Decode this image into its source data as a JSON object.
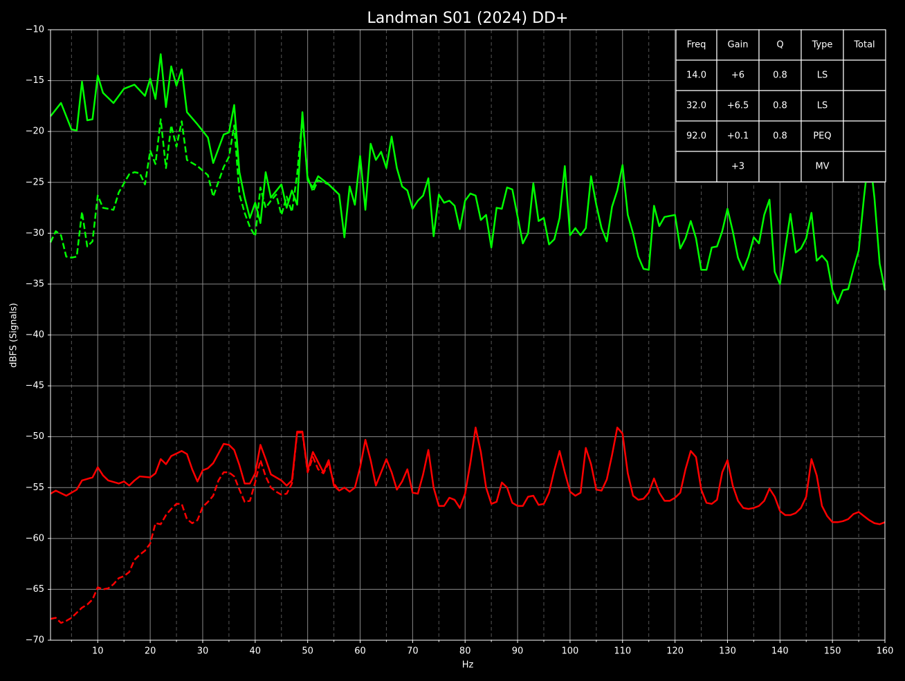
{
  "chart_data": {
    "type": "line",
    "title": "Landman S01 (2024) DD+",
    "xlabel": "Hz",
    "ylabel": "dBFS (Signals)",
    "xlim": [
      1,
      160
    ],
    "ylim": [
      -70,
      -10
    ],
    "xticks": [
      10,
      20,
      30,
      40,
      50,
      60,
      70,
      80,
      90,
      100,
      110,
      120,
      130,
      140,
      150,
      160
    ],
    "xminorticks": [
      5,
      15,
      25,
      35,
      45,
      55,
      65,
      75,
      85,
      95,
      105,
      115,
      125,
      135,
      145,
      155
    ],
    "yticks": [
      {
        "value": -10,
        "label": "−10"
      },
      {
        "value": -15,
        "label": "−15"
      },
      {
        "value": -20,
        "label": "−20"
      },
      {
        "value": -25,
        "label": "−25"
      },
      {
        "value": -30,
        "label": "−30"
      },
      {
        "value": -35,
        "label": "−35"
      },
      {
        "value": -40,
        "label": "−40"
      },
      {
        "value": -45,
        "label": "−45"
      },
      {
        "value": -50,
        "label": "−50"
      },
      {
        "value": -55,
        "label": "−55"
      },
      {
        "value": -60,
        "label": "−60"
      },
      {
        "value": -65,
        "label": "−65"
      },
      {
        "value": -70,
        "label": "−70"
      }
    ],
    "grid": true,
    "series": [
      {
        "color": "#00ff00",
        "dashed": false,
        "x": [
          1,
          3,
          5,
          6,
          7,
          8,
          9,
          10,
          11,
          13,
          15,
          17,
          19,
          20,
          21,
          22,
          23,
          24,
          25,
          26,
          27,
          29,
          31,
          32,
          34,
          35,
          36,
          37,
          38,
          39,
          40,
          41,
          42,
          43,
          45,
          46,
          47,
          48,
          49,
          50,
          51,
          52,
          54,
          56,
          57,
          58,
          59,
          60,
          61,
          62,
          63,
          64,
          65,
          66,
          67,
          68,
          69,
          70,
          71,
          72,
          73,
          74,
          75,
          76,
          77,
          78,
          79,
          80,
          81,
          82,
          83,
          84,
          85,
          86,
          87,
          88,
          89,
          91,
          92,
          93,
          94,
          95,
          96,
          97,
          98,
          99,
          100,
          101,
          102,
          103,
          104,
          105,
          106,
          107,
          108,
          109,
          110,
          111,
          112,
          113,
          114,
          115,
          116,
          117,
          118,
          119,
          120,
          121,
          122,
          123,
          124,
          125,
          126,
          127,
          128,
          129,
          130,
          131,
          132,
          133,
          134,
          135,
          136,
          137,
          138,
          139,
          140,
          141,
          142,
          143,
          144,
          145,
          146,
          147,
          148,
          149,
          150,
          151,
          152,
          153,
          154,
          155,
          156,
          157,
          158,
          159,
          160
        ],
        "values": [
          -18.5,
          -17.2,
          -19.8,
          -19.9,
          -15.1,
          -18.9,
          -18.8,
          -14.5,
          -16.2,
          -17.2,
          -15.8,
          -15.4,
          -16.5,
          -14.8,
          -16.8,
          -12.4,
          -17.6,
          -13.6,
          -15.5,
          -13.9,
          -18.1,
          -19.3,
          -20.6,
          -23.1,
          -20.3,
          -20.1,
          -17.4,
          -24,
          -26.5,
          -28.5,
          -27,
          -29,
          -24,
          -26.5,
          -25.2,
          -27.5,
          -25.8,
          -27.2,
          -18.1,
          -24.8,
          -25.5,
          -24.4,
          -25.2,
          -26.2,
          -30.4,
          -25.4,
          -27.2,
          -22.4,
          -27.7,
          -21.2,
          -22.8,
          -22,
          -23.6,
          -20.5,
          -23.6,
          -25.4,
          -25.8,
          -27.6,
          -26.8,
          -26.3,
          -24.6,
          -30.3,
          -26.2,
          -27,
          -26.8,
          -27.3,
          -29.6,
          -26.8,
          -26.1,
          -26.3,
          -28.7,
          -28.2,
          -31.4,
          -27.5,
          -27.6,
          -25.5,
          -25.7,
          -31,
          -30,
          -25.1,
          -28.8,
          -28.5,
          -31.1,
          -30.6,
          -28.5,
          -23.4,
          -30.2,
          -29.5,
          -30.2,
          -29.5,
          -24.4,
          -27.2,
          -29.5,
          -30.8,
          -27.4,
          -25.8,
          -23.3,
          -28.2,
          -30,
          -32.3,
          -33.5,
          -33.6,
          -27.3,
          -29.3,
          -28.4,
          -28.3,
          -28.2,
          -31.5,
          -30.5,
          -28.8,
          -30.5,
          -33.6,
          -33.6,
          -31.4,
          -31.3,
          -29.8,
          -27.6,
          -29.8,
          -32.4,
          -33.6,
          -32.3,
          -30.4,
          -31,
          -28.2,
          -26.7,
          -33.8,
          -35,
          -31.5,
          -28.1,
          -31.9,
          -31.5,
          -30.5,
          -28,
          -32.7,
          -32.2,
          -32.8,
          -35.6,
          -36.9,
          -35.6,
          -35.5,
          -33.5,
          -31.7,
          -26.5,
          -22,
          -26.5,
          -33,
          -35.6
        ]
      },
      {
        "color": "#00ff00",
        "dashed": true,
        "x": [
          1,
          2,
          3,
          4,
          5,
          6,
          7,
          8,
          9,
          10,
          11,
          12,
          13,
          14,
          15,
          16,
          17,
          18,
          19,
          20,
          21,
          22,
          23,
          24,
          25,
          26,
          27,
          29,
          31,
          32,
          34,
          35,
          36,
          37,
          38,
          39,
          40,
          41,
          42,
          43,
          44,
          45,
          46,
          47,
          48,
          49,
          50,
          51,
          52,
          54,
          56
        ],
        "values": [
          -30.9,
          -29.8,
          -30.2,
          -32.3,
          -32.4,
          -32.3,
          -27.9,
          -31.3,
          -30.8,
          -26.3,
          -27.5,
          -27.6,
          -27.7,
          -26,
          -25.1,
          -24.2,
          -24,
          -24.1,
          -25.2,
          -21.9,
          -23.2,
          -18.8,
          -23.6,
          -19.4,
          -21.5,
          -19,
          -22.8,
          -23.4,
          -24.3,
          -26.4,
          -23.5,
          -22.5,
          -19.4,
          -26.2,
          -28,
          -29.4,
          -30.3,
          -25.5,
          -27.5,
          -26.8,
          -26.2,
          -28.2,
          -26.4,
          -27.9,
          -24.2,
          -18.6,
          -24.5,
          -25.9,
          -24.8,
          -25.2,
          -26.2
        ]
      },
      {
        "color": "#ff0000",
        "dashed": false,
        "x": [
          1,
          2,
          4,
          6,
          7,
          9,
          10,
          11,
          12,
          14,
          15,
          16,
          17,
          18,
          20,
          21,
          22,
          23,
          24,
          26,
          27,
          28,
          29,
          30,
          31,
          32,
          34,
          35,
          36,
          37,
          38,
          39,
          40,
          41,
          42,
          43,
          45,
          46,
          47,
          48,
          49,
          50,
          51,
          52,
          53,
          54,
          55,
          56,
          57,
          58,
          59,
          60,
          61,
          62,
          63,
          64,
          65,
          66,
          67,
          68,
          69,
          70,
          71,
          72,
          73,
          74,
          75,
          76,
          77,
          78,
          79,
          80,
          81,
          82,
          83,
          84,
          85,
          86,
          87,
          88,
          89,
          90,
          91,
          92,
          93,
          94,
          95,
          96,
          97,
          98,
          99,
          100,
          101,
          102,
          103,
          104,
          105,
          106,
          107,
          108,
          109,
          110,
          111,
          112,
          113,
          114,
          115,
          116,
          117,
          118,
          119,
          120,
          121,
          122,
          123,
          124,
          125,
          126,
          127,
          128,
          129,
          130,
          131,
          132,
          133,
          134,
          135,
          136,
          137,
          138,
          139,
          140,
          141,
          142,
          143,
          144,
          145,
          146,
          147,
          148,
          149,
          150,
          151,
          152,
          153,
          154,
          155,
          156,
          157,
          158,
          159,
          160
        ],
        "values": [
          -55.6,
          -55.3,
          -55.8,
          -55.2,
          -54.3,
          -54,
          -53,
          -53.8,
          -54.3,
          -54.6,
          -54.4,
          -54.8,
          -54.3,
          -53.9,
          -54,
          -53.6,
          -52.2,
          -52.7,
          -51.9,
          -51.4,
          -51.7,
          -53.2,
          -54.4,
          -53.3,
          -53.1,
          -52.6,
          -50.7,
          -50.8,
          -51.3,
          -52.8,
          -54.6,
          -54.6,
          -53.6,
          -50.8,
          -52.2,
          -53.7,
          -54.3,
          -54.8,
          -54.3,
          -49.5,
          -49.5,
          -53.3,
          -51.5,
          -52.5,
          -53.5,
          -52.3,
          -54.8,
          -55.3,
          -55,
          -55.4,
          -55,
          -53,
          -50.3,
          -52.3,
          -54.8,
          -53.5,
          -52.2,
          -53.5,
          -55.2,
          -54.4,
          -53.2,
          -55.5,
          -55.6,
          -53.7,
          -51.3,
          -55,
          -56.8,
          -56.8,
          -56,
          -56.2,
          -57,
          -55.6,
          -52.6,
          -49.1,
          -51.5,
          -55,
          -56.6,
          -56.4,
          -54.5,
          -55,
          -56.5,
          -56.8,
          -56.8,
          -55.9,
          -55.8,
          -56.7,
          -56.6,
          -55.5,
          -53.3,
          -51.4,
          -53.5,
          -55.4,
          -55.8,
          -55.5,
          -51.1,
          -52.7,
          -55.2,
          -55.3,
          -54.2,
          -51.8,
          -49.1,
          -49.7,
          -53.6,
          -55.8,
          -56.2,
          -56.1,
          -55.5,
          -54.1,
          -55.5,
          -56.3,
          -56.3,
          -56,
          -55.5,
          -53.2,
          -51.4,
          -52,
          -55.2,
          -56.5,
          -56.6,
          -56.2,
          -53.5,
          -52.3,
          -54.8,
          -56.3,
          -57,
          -57.1,
          -57,
          -56.8,
          -56.3,
          -55.1,
          -55.9,
          -57.3,
          -57.7,
          -57.7,
          -57.5,
          -57,
          -55.9,
          -52.2,
          -53.8,
          -56.8,
          -57.8,
          -58.4,
          -58.4,
          -58.3,
          -58.1,
          -57.6,
          -57.4,
          -57.8,
          -58.2,
          -58.5,
          -58.6,
          -58.4
        ]
      },
      {
        "color": "#ff0000",
        "dashed": true,
        "x": [
          1,
          2,
          3,
          4,
          5,
          6,
          7,
          8,
          9,
          10,
          11,
          12,
          13,
          14,
          15,
          16,
          17,
          18,
          19,
          20,
          21,
          22,
          23,
          24,
          25,
          26,
          27,
          28,
          29,
          30,
          31,
          32,
          33,
          34,
          35,
          36,
          37,
          38,
          39,
          40,
          41,
          42,
          43,
          44,
          45,
          46,
          47,
          48,
          49,
          50,
          51,
          52,
          53,
          54,
          55,
          56
        ],
        "values": [
          -67.9,
          -67.8,
          -68.3,
          -68.1,
          -67.8,
          -67.3,
          -66.8,
          -66.5,
          -66,
          -64.8,
          -65,
          -64.9,
          -64.5,
          -63.9,
          -63.7,
          -63.3,
          -62.1,
          -61.6,
          -61.2,
          -60.5,
          -58.5,
          -58.6,
          -57.7,
          -57.1,
          -56.6,
          -56.6,
          -58.1,
          -58.5,
          -58.2,
          -56.9,
          -56.4,
          -55.8,
          -54.3,
          -53.5,
          -53.5,
          -53.9,
          -55.2,
          -56.4,
          -56.3,
          -54.5,
          -52.3,
          -53.9,
          -55,
          -55.4,
          -55.7,
          -55.6,
          -54.6,
          -49.6,
          -49.6,
          -53.5,
          -52,
          -53.2,
          -53.6,
          -52.6,
          -54.6,
          -55.3
        ]
      }
    ],
    "table": {
      "columns": [
        "Freq",
        "Gain",
        "Q",
        "Type",
        "Total"
      ],
      "rows": [
        [
          "14.0",
          "+6",
          "0.8",
          "LS",
          null
        ],
        [
          "32.0",
          "+6.5",
          "0.8",
          "LS",
          null
        ],
        [
          "92.0",
          "+0.1",
          "0.8",
          "PEQ",
          null
        ],
        [
          null,
          "+3",
          null,
          "MV",
          null
        ]
      ]
    }
  }
}
